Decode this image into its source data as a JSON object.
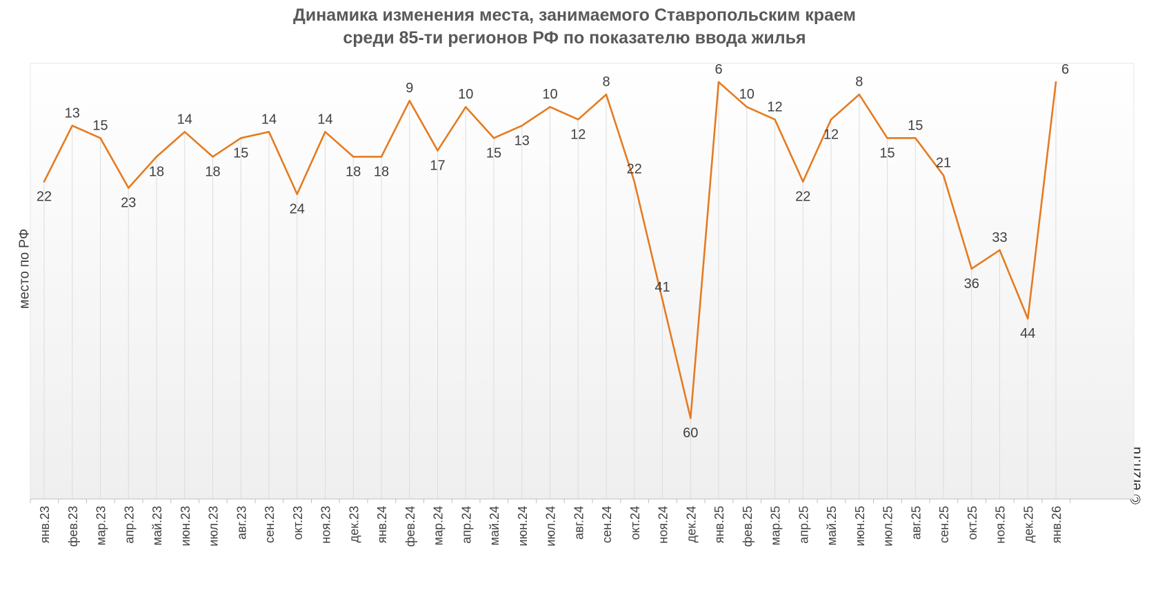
{
  "chart_data": {
    "type": "line",
    "title_lines": [
      "Динамика изменения места, занимаемого Ставропольским краем",
      "среди 85-ти регионов РФ по показателю ввода жилья"
    ],
    "xlabel": "",
    "ylabel": "место по РФ",
    "y_inverted": true,
    "ylim": [
      3,
      73
    ],
    "grid": "vertical",
    "categories": [
      "янв.23",
      "фев.23",
      "мар.23",
      "апр.23",
      "май.23",
      "июн.23",
      "июл.23",
      "авг.23",
      "сен.23",
      "окт.23",
      "ноя.23",
      "дек.23",
      "янв.24",
      "фев.24",
      "мар.24",
      "апр.24",
      "май.24",
      "июн.24",
      "июл.24",
      "авг.24",
      "сен.24",
      "окт.24",
      "ноя.24",
      "дек.24",
      "янв.25",
      "фев.25",
      "мар.25",
      "апр.25",
      "май.25",
      "июн.25",
      "июл.25",
      "авг.25",
      "сен.25",
      "окт.25",
      "ноя.25",
      "дек.25",
      "янв.26"
    ],
    "series": [
      {
        "color": "#E67A1E",
        "values": [
          22,
          13,
          15,
          23,
          18,
          14,
          18,
          15,
          14,
          24,
          14,
          18,
          18,
          9,
          17,
          10,
          15,
          13,
          10,
          12,
          8,
          22,
          41,
          60,
          6,
          10,
          12,
          22,
          12,
          8,
          15,
          15,
          21,
          36,
          33,
          44,
          6
        ]
      }
    ]
  },
  "watermark": "© erzrf.ru"
}
